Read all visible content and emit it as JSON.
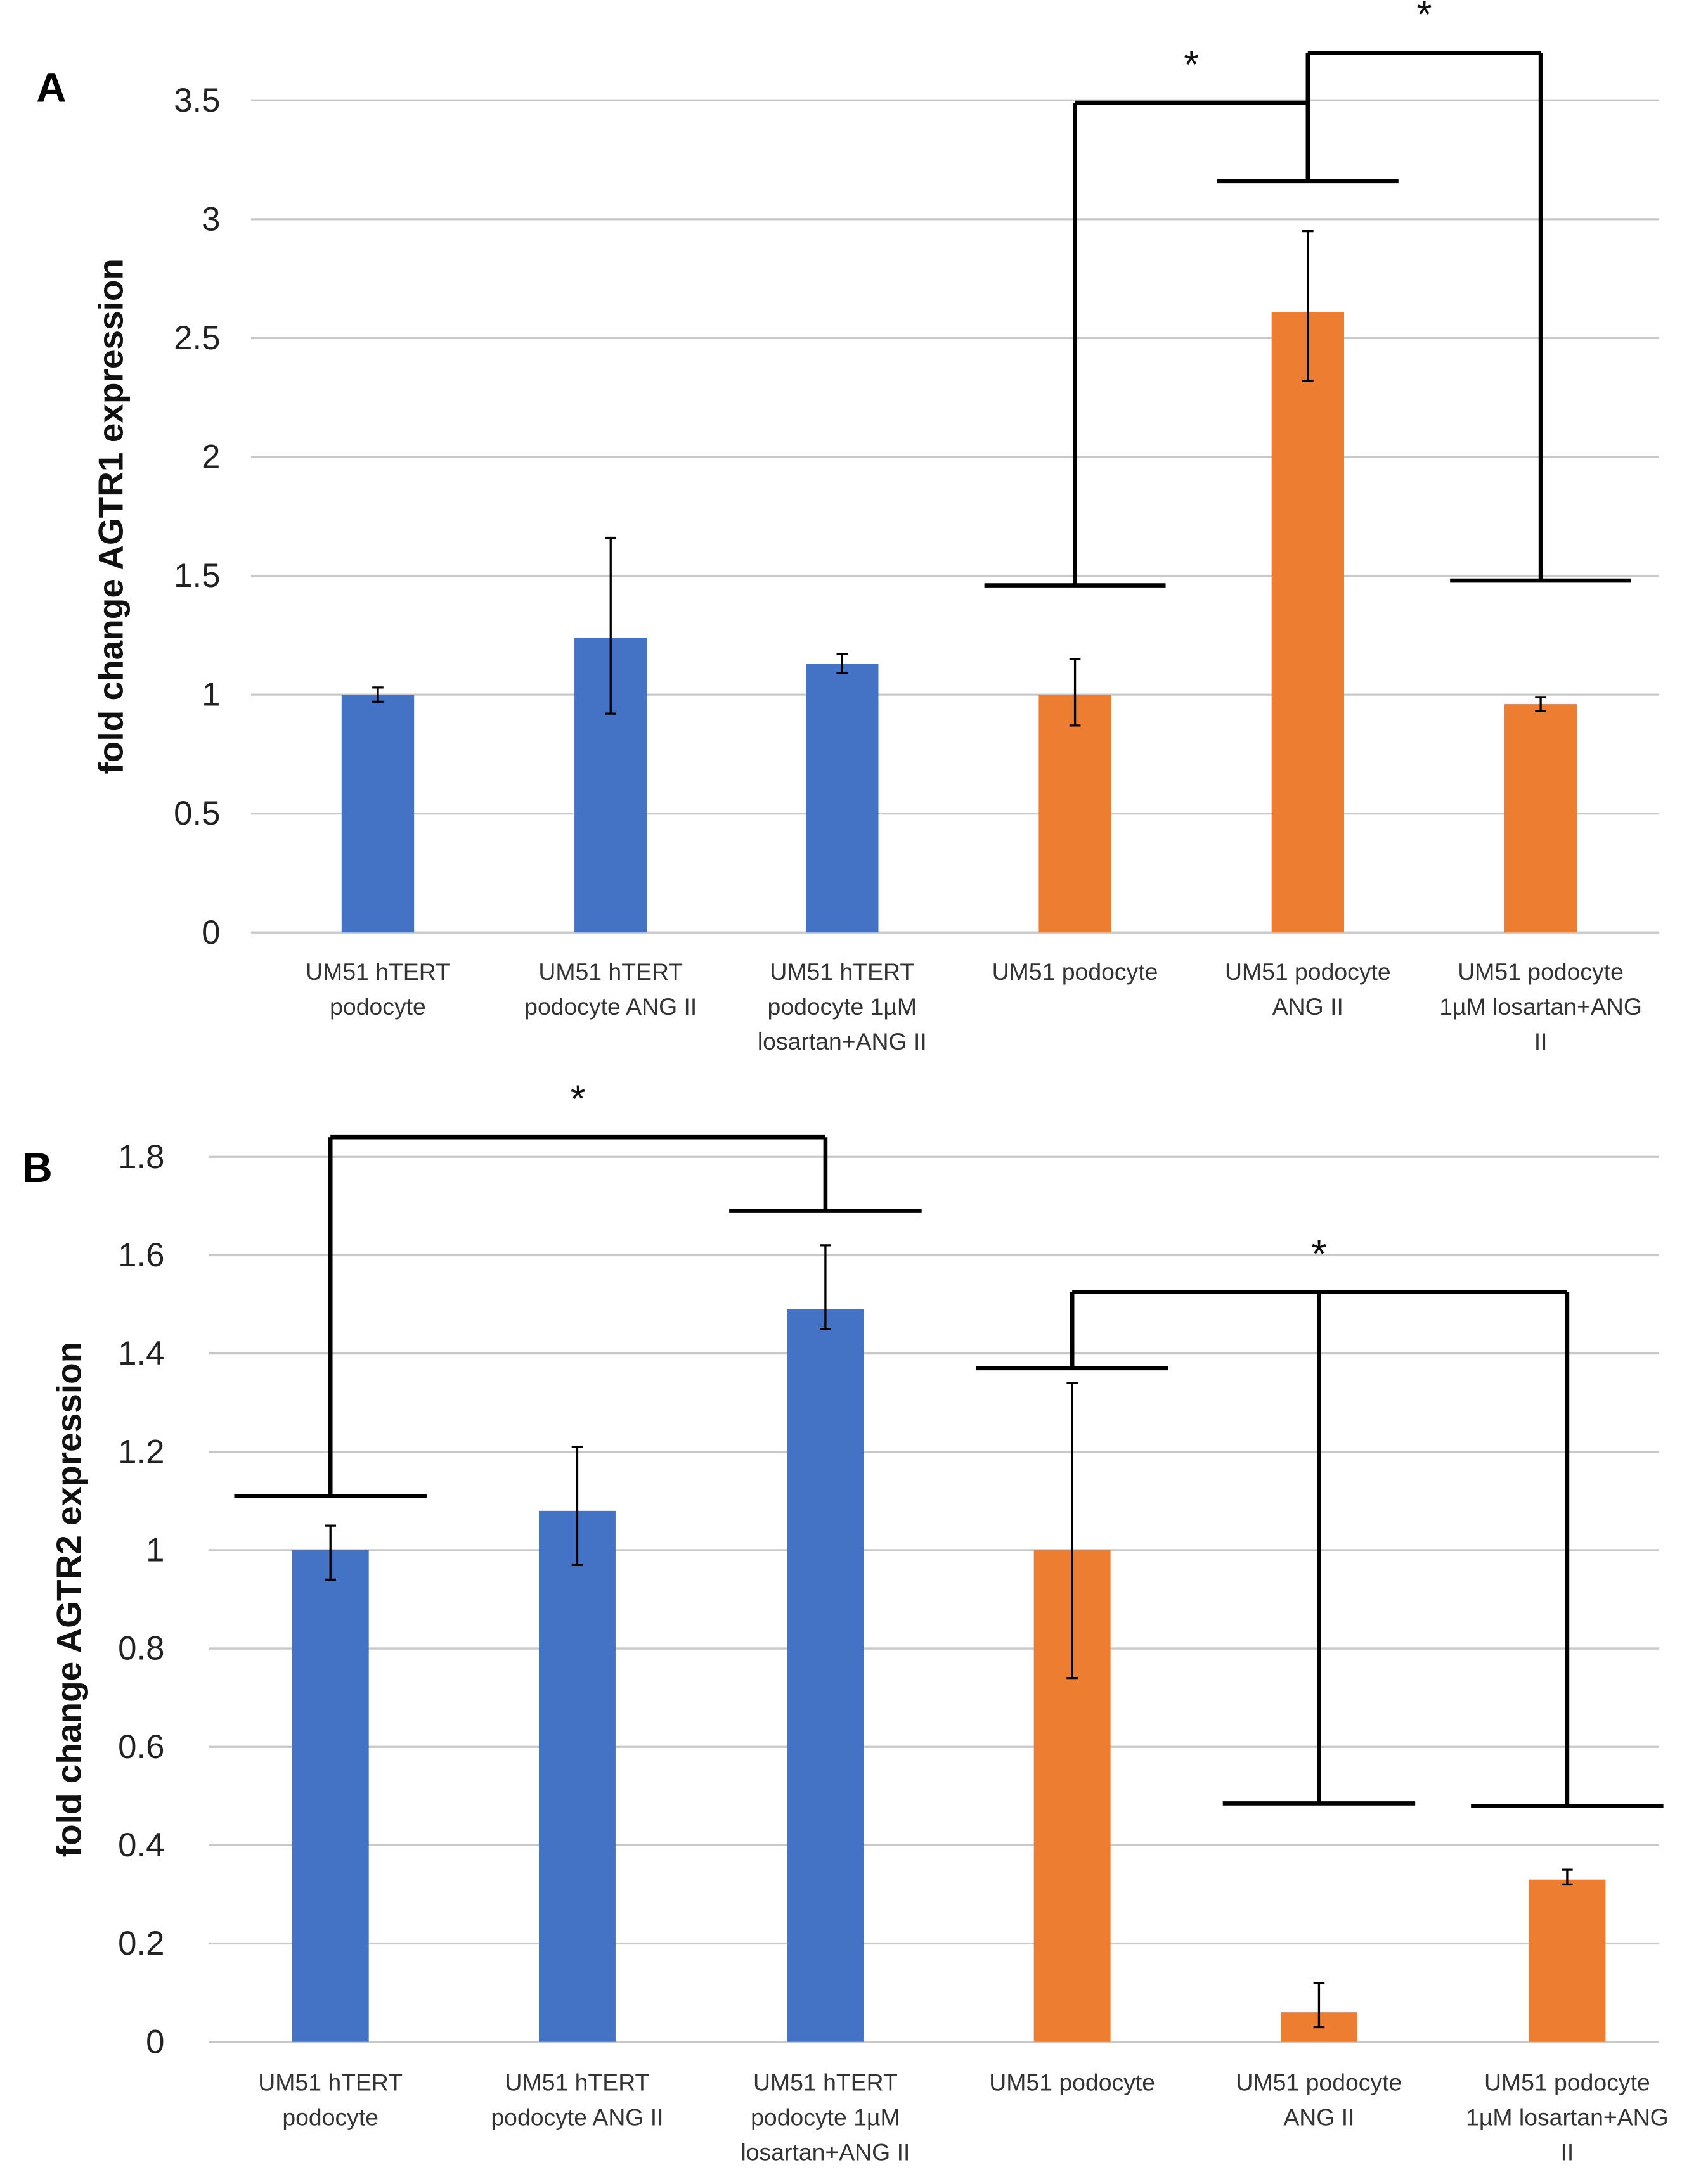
{
  "colors": {
    "hTERT": "#4472C4",
    "podocyte": "#ED7D31",
    "grid": "#C8C8C8",
    "bracket": "#000000"
  },
  "chart_data": [
    {
      "type": "bar",
      "panel": "A",
      "ylabel": "fold change AGTR1 expression",
      "xlabel": "",
      "ylim": [
        0,
        3.5
      ],
      "yticks": [
        "0",
        "0.5",
        "1",
        "1.5",
        "2",
        "2.5",
        "3",
        "3.5"
      ],
      "ytick_values": [
        0,
        0.5,
        1,
        1.5,
        2,
        2.5,
        3,
        3.5
      ],
      "grid": true,
      "categories": [
        [
          "UM51 hTERT",
          "podocyte"
        ],
        [
          "UM51 hTERT",
          "podocyte ANG II"
        ],
        [
          "UM51 hTERT",
          "podocyte 1µM",
          "losartan+ANG II"
        ],
        [
          "UM51 podocyte"
        ],
        [
          "UM51 podocyte",
          "ANG II"
        ],
        [
          "UM51 podocyte",
          "1µM losartan+ANG",
          "II"
        ]
      ],
      "groups": [
        "hTERT",
        "hTERT",
        "hTERT",
        "podocyte",
        "podocyte",
        "podocyte"
      ],
      "values": [
        1.0,
        1.24,
        1.13,
        1.0,
        2.61,
        0.96
      ],
      "error_low": [
        0.97,
        0.92,
        1.09,
        0.87,
        2.32,
        0.93
      ],
      "error_high": [
        1.03,
        1.66,
        1.17,
        1.15,
        2.95,
        0.99
      ],
      "significance": [
        {
          "from": 3,
          "to": 4,
          "from_y": 1.46,
          "to_y": 3.16,
          "top": 3.49,
          "label": "*"
        },
        {
          "from": 4,
          "to": 5,
          "from_y": 3.49,
          "to_y": 1.48,
          "top": 3.7,
          "label": "*",
          "no_from_cap": true
        }
      ]
    },
    {
      "type": "bar",
      "panel": "B",
      "ylabel": "fold change AGTR2 expression",
      "xlabel": "",
      "ylim": [
        0,
        1.8
      ],
      "yticks": [
        "0",
        "0.2",
        "0.4",
        "0.6",
        "0.8",
        "1",
        "1.2",
        "1.4",
        "1.6",
        "1.8"
      ],
      "ytick_values": [
        0,
        0.2,
        0.4,
        0.6,
        0.8,
        1,
        1.2,
        1.4,
        1.6,
        1.8
      ],
      "grid": true,
      "categories": [
        [
          "UM51 hTERT",
          "podocyte"
        ],
        [
          "UM51 hTERT",
          "podocyte ANG II"
        ],
        [
          "UM51 hTERT",
          "podocyte 1µM",
          "losartan+ANG II"
        ],
        [
          "UM51 podocyte"
        ],
        [
          "UM51 podocyte",
          "ANG II"
        ],
        [
          "UM51 podocyte",
          "1µM losartan+ANG",
          "II"
        ]
      ],
      "groups": [
        "hTERT",
        "hTERT",
        "hTERT",
        "podocyte",
        "podocyte",
        "podocyte"
      ],
      "values": [
        1.0,
        1.08,
        1.49,
        1.0,
        0.06,
        0.33
      ],
      "error_low": [
        0.94,
        0.97,
        1.45,
        0.74,
        0.03,
        0.32
      ],
      "error_high": [
        1.05,
        1.21,
        1.62,
        1.34,
        0.12,
        0.35
      ],
      "significance": [
        {
          "from": 0,
          "to": 2,
          "from_y": 1.11,
          "to_y": 1.69,
          "top": 1.84,
          "label": "*"
        },
        {
          "from": 3,
          "to": 5,
          "from_y": 1.37,
          "to_y": 0.48,
          "top": 1.525,
          "label": "*",
          "also": 4,
          "also_y": 0.485
        }
      ]
    }
  ]
}
